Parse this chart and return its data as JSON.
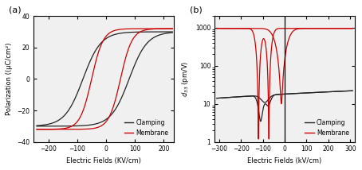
{
  "panel_a": {
    "title": "(a)",
    "xlabel": "Electric Fields (KV/cm)",
    "ylabel": "Polarization ((μC/cm²)",
    "xlim": [
      -250,
      235
    ],
    "ylim": [
      -40,
      40
    ],
    "xticks": [
      -200,
      -100,
      0,
      100,
      200
    ],
    "yticks": [
      -40,
      -20,
      0,
      20,
      40
    ],
    "legend": [
      "Clamping",
      "Membrane"
    ],
    "colors": [
      "#222222",
      "#cc0000"
    ]
  },
  "panel_b": {
    "title": "(b)",
    "xlabel": "Electric Fields (kV/cm)",
    "ylabel": "d33 (pm/V)",
    "xlim": [
      -320,
      320
    ],
    "ylim_log": [
      1,
      2000
    ],
    "yticks": [
      1,
      10,
      100,
      1000
    ],
    "xticks": [
      -300,
      -200,
      -100,
      0,
      100,
      200,
      300
    ],
    "legend": [
      "Clamping",
      "Membrane"
    ],
    "colors": [
      "#222222",
      "#cc0000"
    ]
  }
}
